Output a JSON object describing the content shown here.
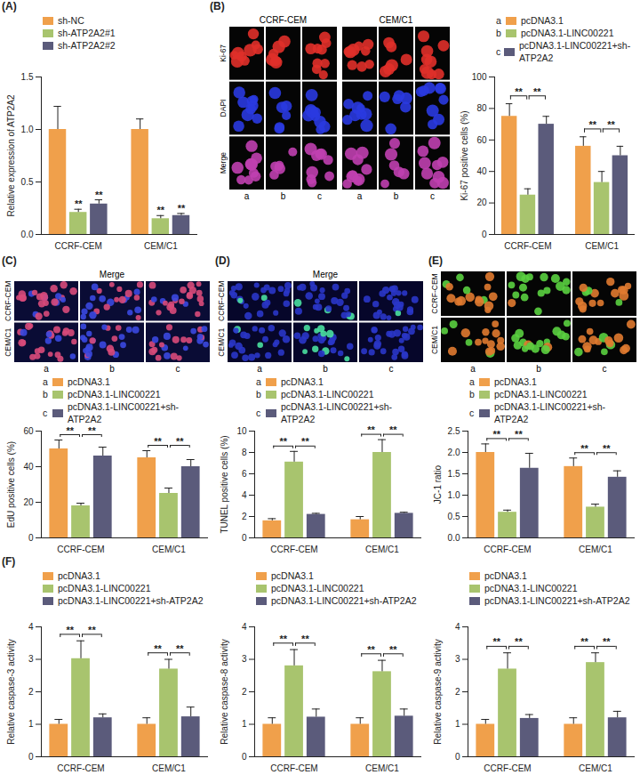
{
  "chart_data": [
    {
      "panel": "(A)",
      "type": "bar",
      "y_label": "Relative expression of ATP2A2",
      "categories": [
        "CCRF-CEM",
        "CEM/C1"
      ],
      "series": [
        {
          "name": "sh-NC",
          "color": "#F0A04B",
          "values": [
            1.0,
            1.0
          ],
          "errors": [
            0.22,
            0.1
          ]
        },
        {
          "name": "sh-ATP2A2#1",
          "color": "#A8C46E",
          "values": [
            0.21,
            0.15
          ],
          "errors": [
            0.03,
            0.03
          ]
        },
        {
          "name": "sh-ATP2A2#2",
          "color": "#5B5B7B",
          "values": [
            0.29,
            0.18
          ],
          "errors": [
            0.04,
            0.02
          ]
        }
      ],
      "ylim": [
        0,
        1.5
      ],
      "yticks": [
        {
          "value": 0,
          "label": "0.0"
        },
        0.5,
        {
          "value": 1,
          "label": "1.0"
        },
        1.5
      ],
      "significance": [
        {
          "category": "CCRF-CEM",
          "series": "sh-ATP2A2#1",
          "label": "**"
        },
        {
          "category": "CCRF-CEM",
          "series": "sh-ATP2A2#2",
          "label": "**"
        },
        {
          "category": "CEM/C1",
          "series": "sh-ATP2A2#1",
          "label": "**"
        },
        {
          "category": "CEM/C1",
          "series": "sh-ATP2A2#2",
          "label": "**"
        }
      ]
    },
    {
      "type": "bar",
      "y_label": "Ki-67 positive cells (%)",
      "categories": [
        "CCRF-CEM",
        "CEM/C1"
      ],
      "series": [
        {
          "key": "a",
          "name": "pcDNA3.1",
          "color": "#F0A04B",
          "values": [
            75,
            56
          ],
          "errors": [
            8,
            6
          ]
        },
        {
          "key": "b",
          "name": "pcDNA3.1-LINC00221",
          "color": "#A8C46E",
          "values": [
            25,
            33
          ],
          "errors": [
            4,
            7
          ]
        },
        {
          "key": "c",
          "name": "pcDNA3.1-LINC00221+sh-ATP2A2",
          "color": "#5B5B7B",
          "values": [
            70,
            50
          ],
          "errors": [
            5,
            6
          ]
        }
      ],
      "ylim": [
        0,
        100
      ],
      "yticks": [
        0,
        20,
        40,
        60,
        80,
        100
      ],
      "significance": [
        {
          "category": "CCRF-CEM",
          "from": "pcDNA3.1",
          "to": "pcDNA3.1-LINC00221",
          "label": "**"
        },
        {
          "category": "CCRF-CEM",
          "from": "pcDNA3.1-LINC00221",
          "to": "pcDNA3.1-LINC00221+sh-ATP2A2",
          "label": "**"
        },
        {
          "category": "CEM/C1",
          "from": "pcDNA3.1",
          "to": "pcDNA3.1-LINC00221",
          "label": "**"
        },
        {
          "category": "CEM/C1",
          "from": "pcDNA3.1-LINC00221",
          "to": "pcDNA3.1-LINC00221+sh-ATP2A2",
          "label": "**"
        }
      ]
    },
    {
      "type": "bar",
      "y_label": "EdU positive cells (%)",
      "categories": [
        "CCRF-CEM",
        "CEM/C1"
      ],
      "series": [
        {
          "key": "a",
          "name": "pcDNA3.1",
          "color": "#F0A04B",
          "values": [
            50,
            45
          ],
          "errors": [
            5,
            4
          ]
        },
        {
          "key": "b",
          "name": "pcDNA3.1-LINC00221",
          "color": "#A8C46E",
          "values": [
            18,
            25
          ],
          "errors": [
            1.5,
            3
          ]
        },
        {
          "key": "c",
          "name": "pcDNA3.1-LINC00221+sh-ATP2A2",
          "color": "#5B5B7B",
          "values": [
            46,
            40
          ],
          "errors": [
            5,
            4
          ]
        }
      ],
      "ylim": [
        0,
        60
      ],
      "yticks": [
        0,
        20,
        40,
        60
      ],
      "significance": [
        {
          "category": "CCRF-CEM",
          "from": "pcDNA3.1",
          "to": "pcDNA3.1-LINC00221",
          "label": "**"
        },
        {
          "category": "CCRF-CEM",
          "from": "pcDNA3.1-LINC00221",
          "to": "pcDNA3.1-LINC00221+sh-ATP2A2",
          "label": "**"
        },
        {
          "category": "CEM/C1",
          "from": "pcDNA3.1",
          "to": "pcDNA3.1-LINC00221",
          "label": "**"
        },
        {
          "category": "CEM/C1",
          "from": "pcDNA3.1-LINC00221",
          "to": "pcDNA3.1-LINC00221+sh-ATP2A2",
          "label": "**"
        }
      ]
    },
    {
      "type": "bar",
      "y_label": "TUNEL positive cells (%)",
      "categories": [
        "CCRF-CEM",
        "CEM/C1"
      ],
      "series": [
        {
          "key": "a",
          "name": "pcDNA3.1",
          "color": "#F0A04B",
          "values": [
            1.6,
            1.7
          ],
          "errors": [
            0.2,
            0.3
          ]
        },
        {
          "key": "b",
          "name": "pcDNA3.1-LINC00221",
          "color": "#A8C46E",
          "values": [
            7.1,
            8.0
          ],
          "errors": [
            1.0,
            1.2
          ]
        },
        {
          "key": "c",
          "name": "pcDNA3.1-LINC00221+sh-ATP2A2",
          "color": "#5B5B7B",
          "values": [
            2.2,
            2.3
          ],
          "errors": [
            0.1,
            0.1
          ]
        }
      ],
      "ylim": [
        0,
        10
      ],
      "yticks": [
        0,
        2,
        4,
        6,
        8,
        10
      ],
      "significance": [
        {
          "category": "CCRF-CEM",
          "from": "pcDNA3.1",
          "to": "pcDNA3.1-LINC00221",
          "label": "**"
        },
        {
          "category": "CCRF-CEM",
          "from": "pcDNA3.1-LINC00221",
          "to": "pcDNA3.1-LINC00221+sh-ATP2A2",
          "label": "**"
        },
        {
          "category": "CEM/C1",
          "from": "pcDNA3.1",
          "to": "pcDNA3.1-LINC00221",
          "label": "**"
        },
        {
          "category": "CEM/C1",
          "from": "pcDNA3.1-LINC00221",
          "to": "pcDNA3.1-LINC00221+sh-ATP2A2",
          "label": "**"
        }
      ]
    },
    {
      "type": "bar",
      "y_label": "JC-1 ratio",
      "categories": [
        "CCRF-CEM",
        "CEM/C1"
      ],
      "series": [
        {
          "key": "a",
          "name": "pcDNA3.1",
          "color": "#F0A04B",
          "values": [
            2.0,
            1.67
          ],
          "errors": [
            0.2,
            0.2
          ]
        },
        {
          "key": "b",
          "name": "pcDNA3.1-LINC00221",
          "color": "#A8C46E",
          "values": [
            0.6,
            0.72
          ],
          "errors": [
            0.05,
            0.07
          ]
        },
        {
          "key": "c",
          "name": "pcDNA3.1-LINC00221+sh-ATP2A2",
          "color": "#5B5B7B",
          "values": [
            1.63,
            1.42
          ],
          "errors": [
            0.35,
            0.15
          ]
        }
      ],
      "ylim": [
        0,
        2.5
      ],
      "yticks": [
        {
          "value": 0,
          "label": "0.0"
        },
        0.5,
        {
          "value": 1,
          "label": "1.0"
        },
        1.5,
        {
          "value": 2,
          "label": "2.0"
        },
        2.5
      ],
      "significance": [
        {
          "category": "CCRF-CEM",
          "from": "pcDNA3.1",
          "to": "pcDNA3.1-LINC00221",
          "label": "**"
        },
        {
          "category": "CCRF-CEM",
          "from": "pcDNA3.1-LINC00221",
          "to": "pcDNA3.1-LINC00221+sh-ATP2A2",
          "label": "**"
        },
        {
          "category": "CEM/C1",
          "from": "pcDNA3.1",
          "to": "pcDNA3.1-LINC00221",
          "label": "**"
        },
        {
          "category": "CEM/C1",
          "from": "pcDNA3.1-LINC00221",
          "to": "pcDNA3.1-LINC00221+sh-ATP2A2",
          "label": "**"
        }
      ]
    },
    {
      "panel": "(F)",
      "type": "bar",
      "y_label": "Relative caspase-3 activity",
      "categories": [
        "CCRF-CEM",
        "CEM/C1"
      ],
      "series": [
        {
          "name": "pcDNA3.1",
          "color": "#F0A04B",
          "values": [
            1.0,
            1.0
          ],
          "errors": [
            0.15,
            0.2
          ]
        },
        {
          "name": "pcDNA3.1-LINC00221",
          "color": "#A8C46E",
          "values": [
            3.02,
            2.7
          ],
          "errors": [
            0.55,
            0.3
          ]
        },
        {
          "name": "pcDNA3.1-LINC00221+sh-ATP2A2",
          "color": "#5B5B7B",
          "values": [
            1.2,
            1.23
          ],
          "errors": [
            0.12,
            0.3
          ]
        }
      ],
      "ylim": [
        0,
        4
      ],
      "yticks": [
        0,
        1,
        2,
        3,
        4
      ],
      "significance": [
        {
          "category": "CCRF-CEM",
          "from": "pcDNA3.1",
          "to": "pcDNA3.1-LINC00221",
          "label": "**"
        },
        {
          "category": "CCRF-CEM",
          "from": "pcDNA3.1-LINC00221",
          "to": "pcDNA3.1-LINC00221+sh-ATP2A2",
          "label": "**"
        },
        {
          "category": "CEM/C1",
          "from": "pcDNA3.1",
          "to": "pcDNA3.1-LINC00221",
          "label": "**"
        },
        {
          "category": "CEM/C1",
          "from": "pcDNA3.1-LINC00221",
          "to": "pcDNA3.1-LINC00221+sh-ATP2A2",
          "label": "**"
        }
      ]
    },
    {
      "type": "bar",
      "y_label": "Relative caspase-8 activity",
      "categories": [
        "CCRF-CEM",
        "CEM/C1"
      ],
      "series": [
        {
          "name": "pcDNA3.1",
          "color": "#F0A04B",
          "values": [
            1.0,
            1.0
          ],
          "errors": [
            0.2,
            0.2
          ]
        },
        {
          "name": "pcDNA3.1-LINC00221",
          "color": "#A8C46E",
          "values": [
            2.8,
            2.62
          ],
          "errors": [
            0.5,
            0.35
          ]
        },
        {
          "name": "pcDNA3.1-LINC00221+sh-ATP2A2",
          "color": "#5B5B7B",
          "values": [
            1.22,
            1.25
          ],
          "errors": [
            0.25,
            0.22
          ]
        }
      ],
      "ylim": [
        0,
        4
      ],
      "yticks": [
        0,
        1,
        2,
        3,
        4
      ],
      "significance": [
        {
          "category": "CCRF-CEM",
          "from": "pcDNA3.1",
          "to": "pcDNA3.1-LINC00221",
          "label": "**"
        },
        {
          "category": "CCRF-CEM",
          "from": "pcDNA3.1-LINC00221",
          "to": "pcDNA3.1-LINC00221+sh-ATP2A2",
          "label": "**"
        },
        {
          "category": "CEM/C1",
          "from": "pcDNA3.1",
          "to": "pcDNA3.1-LINC00221",
          "label": "**"
        },
        {
          "category": "CEM/C1",
          "from": "pcDNA3.1-LINC00221",
          "to": "pcDNA3.1-LINC00221+sh-ATP2A2",
          "label": "**"
        }
      ]
    },
    {
      "type": "bar",
      "y_label": "Relative caspase-9 activity",
      "categories": [
        "CCRF-CEM",
        "CEM/C1"
      ],
      "series": [
        {
          "name": "pcDNA3.1",
          "color": "#F0A04B",
          "values": [
            1.0,
            1.0
          ],
          "errors": [
            0.15,
            0.2
          ]
        },
        {
          "name": "pcDNA3.1-LINC00221",
          "color": "#A8C46E",
          "values": [
            2.7,
            2.9
          ],
          "errors": [
            0.5,
            0.3
          ]
        },
        {
          "name": "pcDNA3.1-LINC00221+sh-ATP2A2",
          "color": "#5B5B7B",
          "values": [
            1.18,
            1.2
          ],
          "errors": [
            0.12,
            0.2
          ]
        }
      ],
      "ylim": [
        0,
        4
      ],
      "yticks": [
        0,
        1,
        2,
        3,
        4
      ],
      "significance": [
        {
          "category": "CCRF-CEM",
          "from": "pcDNA3.1",
          "to": "pcDNA3.1-LINC00221",
          "label": "**"
        },
        {
          "category": "CCRF-CEM",
          "from": "pcDNA3.1-LINC00221",
          "to": "pcDNA3.1-LINC00221+sh-ATP2A2",
          "label": "**"
        },
        {
          "category": "CEM/C1",
          "from": "pcDNA3.1",
          "to": "pcDNA3.1-LINC00221",
          "label": "**"
        },
        {
          "category": "CEM/C1",
          "from": "pcDNA3.1-LINC00221",
          "to": "pcDNA3.1-LINC00221+sh-ATP2A2",
          "label": "**"
        }
      ]
    }
  ],
  "image_panels": [
    {
      "panel": "(B)",
      "column_groups": [
        "CCRF-CEM",
        "CEM/C1"
      ],
      "rows": [
        "Ki-67",
        "DAPI",
        "Merge"
      ],
      "columns": [
        "a",
        "b",
        "c"
      ]
    },
    {
      "panel": "(C)",
      "title": "Merge",
      "rows": [
        "CCRF-CEM",
        "CEM/C1"
      ],
      "columns": [
        "a",
        "b",
        "c"
      ]
    },
    {
      "panel": "(D)",
      "title": "Merge",
      "rows": [
        "CCRF-CEM",
        "CEM/C1"
      ],
      "columns": [
        "a",
        "b",
        "c"
      ]
    },
    {
      "panel": "(E)",
      "rows": [
        "CCRF-CEM",
        "CEM/C1"
      ],
      "columns": [
        "a",
        "b",
        "c"
      ]
    }
  ]
}
